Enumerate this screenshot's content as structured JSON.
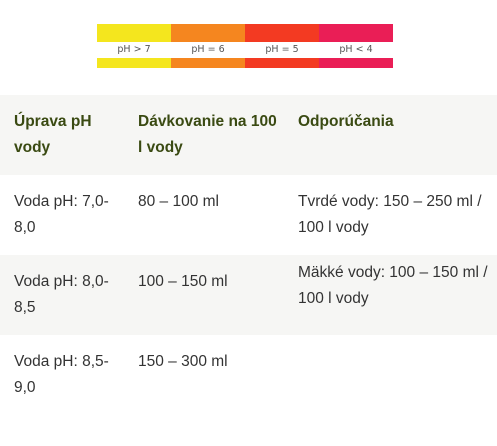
{
  "ph_scale": [
    {
      "label": "pH > 7",
      "color": "#f4e61e"
    },
    {
      "label": "pH = 6",
      "color": "#f5861f"
    },
    {
      "label": "pH = 5",
      "color": "#f33a22"
    },
    {
      "label": "pH < 4",
      "color": "#ea1e56"
    }
  ],
  "table": {
    "headers": [
      "Úprava pH vody",
      "Dávkovanie na 100 l vody",
      "Odporúčania"
    ],
    "rows": [
      {
        "ph": "Voda pH: 7,0-8,0",
        "dose": "80 – 100 ml"
      },
      {
        "ph": "Voda pH: 8,0-8,5",
        "dose": "100 – 150 ml"
      },
      {
        "ph": "Voda pH: 8,5-9,0",
        "dose": "150 – 300 ml"
      }
    ],
    "recommendations": [
      "Tvrdé vody: 150 – 250 ml / 100 l vody",
      "Mäkké vody: 100 – 150 ml / 100 l vody"
    ]
  }
}
